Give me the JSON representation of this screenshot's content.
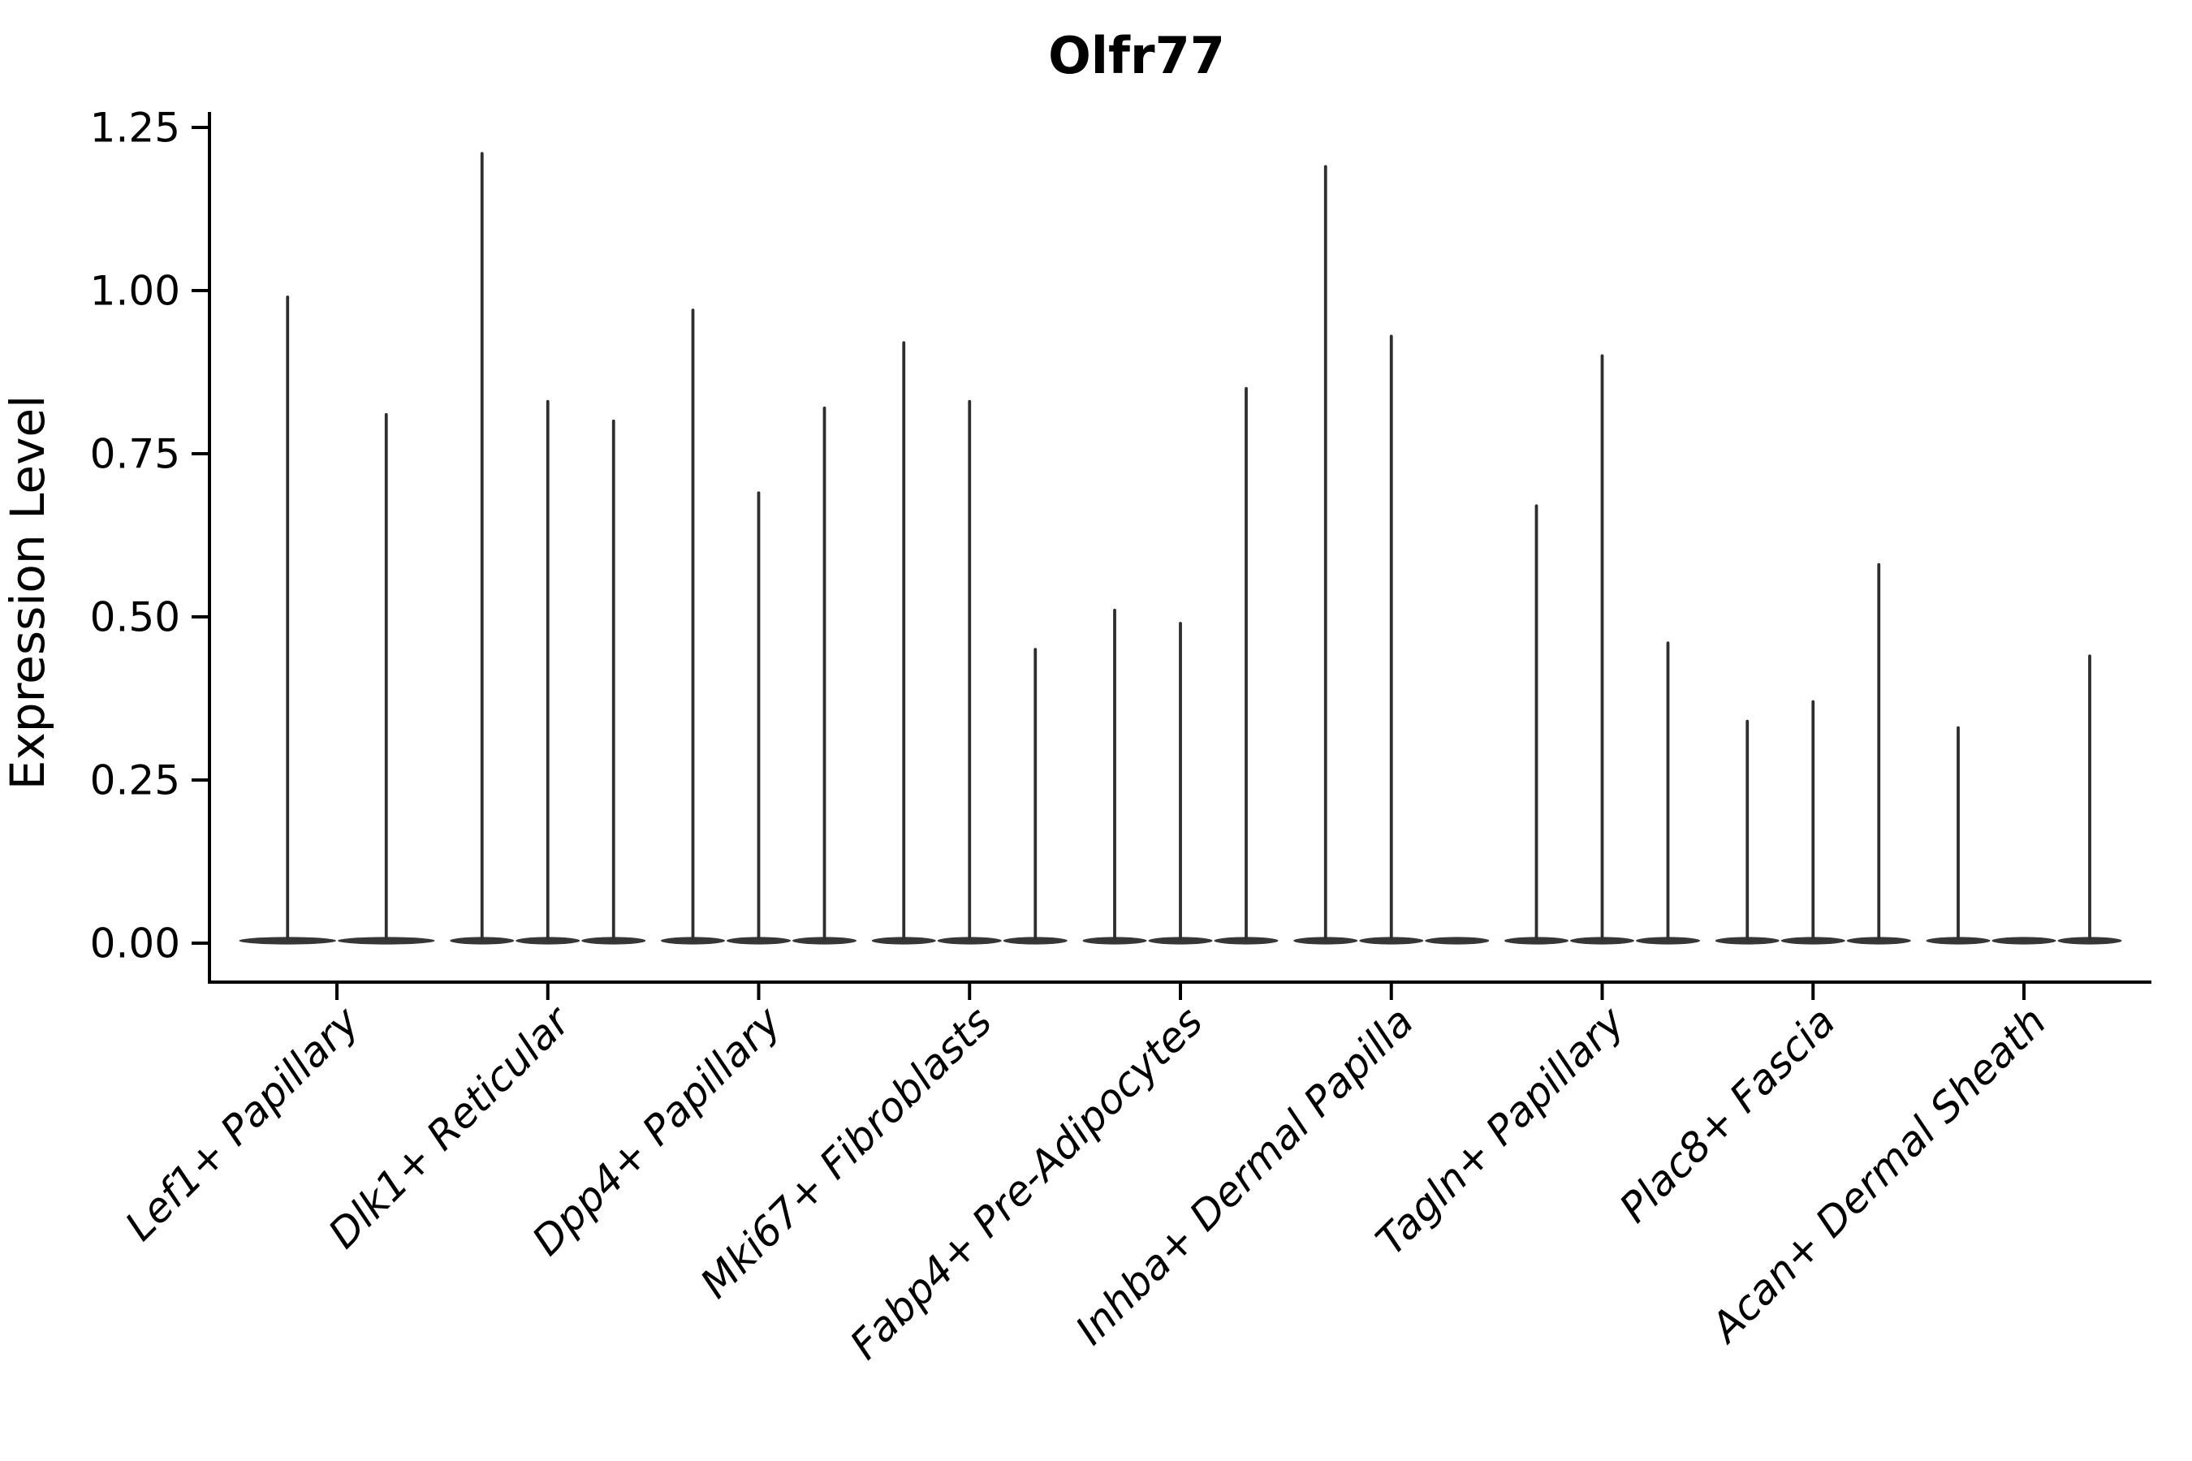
{
  "chart_data": {
    "type": "violin",
    "title": "Olfr77",
    "ylabel": "Expression Level",
    "xlabel": "",
    "ylim": [
      -0.06,
      1.27
    ],
    "yticks": [
      0,
      0.25,
      0.5,
      0.75,
      1.0,
      1.25
    ],
    "ytick_labels": [
      "0.00",
      "0.25",
      "0.50",
      "0.75",
      "1.00",
      "1.25"
    ],
    "grid": false,
    "legend": null,
    "categories": [
      "Lef1+ Papillary",
      "Dlk1+ Reticular",
      "Dpp4+ Papillary",
      "Mki67+ Fibroblasts",
      "Fabp4+ Pre-Adipocytes",
      "Inhba+ Dermal Papilla",
      "Tagln+ Papillary",
      "Plac8+ Fascia",
      "Acan+ Dermal Sheath"
    ],
    "groups": [
      {
        "label": "Lef1+ Papillary",
        "violin_maxima": [
          0.99,
          0.81
        ]
      },
      {
        "label": "Dlk1+ Reticular",
        "violin_maxima": [
          1.21,
          0.83,
          0.8
        ]
      },
      {
        "label": "Dpp4+ Papillary",
        "violin_maxima": [
          0.97,
          0.69,
          0.82
        ]
      },
      {
        "label": "Mki67+ Fibroblasts",
        "violin_maxima": [
          0.92,
          0.83,
          0.45
        ]
      },
      {
        "label": "Fabp4+ Pre-Adipocytes",
        "violin_maxima": [
          0.51,
          0.49,
          0.85
        ]
      },
      {
        "label": "Inhba+ Dermal Papilla",
        "violin_maxima": [
          1.19,
          0.93,
          null
        ]
      },
      {
        "label": "Tagln+ Papillary",
        "violin_maxima": [
          0.67,
          0.9,
          0.46
        ]
      },
      {
        "label": "Plac8+ Fascia",
        "violin_maxima": [
          0.34,
          0.37,
          0.58
        ]
      },
      {
        "label": "Acan+ Dermal Sheath",
        "violin_maxima": [
          0.33,
          null,
          0.44
        ]
      }
    ],
    "colors": {
      "violin": "#2e2e2e",
      "axis": "#000000",
      "text": "#000000",
      "background": "#ffffff"
    }
  }
}
